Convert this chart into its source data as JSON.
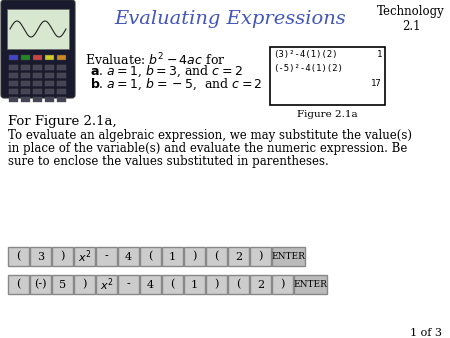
{
  "title": "Evaluating Expressions",
  "title_color": "#4455bb",
  "tech_label": "Technology\n2.1",
  "figure_label": "Figure 2.1a",
  "for_figure_text": "For Figure 2.1a,",
  "paragraph_lines": [
    "To evaluate an algebraic expression, we may substitute the value(s)",
    "in place of the variable(s) and evaluate the numeric expression. Be",
    "sure to enclose the values substituted in parentheses."
  ],
  "row1_keys": [
    "(",
    "3",
    ")",
    "x²",
    "-",
    "4",
    "(",
    "1",
    ")",
    "(",
    "2",
    ")",
    "ENTER"
  ],
  "row2_keys": [
    "(",
    "(-)",
    "5",
    ")",
    "x²",
    "-",
    "4",
    "(",
    "1",
    ")",
    "(",
    "2",
    ")",
    "ENTER"
  ],
  "page_label": "1 of 3",
  "bg_color": "#ffffff",
  "key_bg": "#cccccc",
  "key_border": "#888888",
  "enter_bg": "#bbbbbb"
}
